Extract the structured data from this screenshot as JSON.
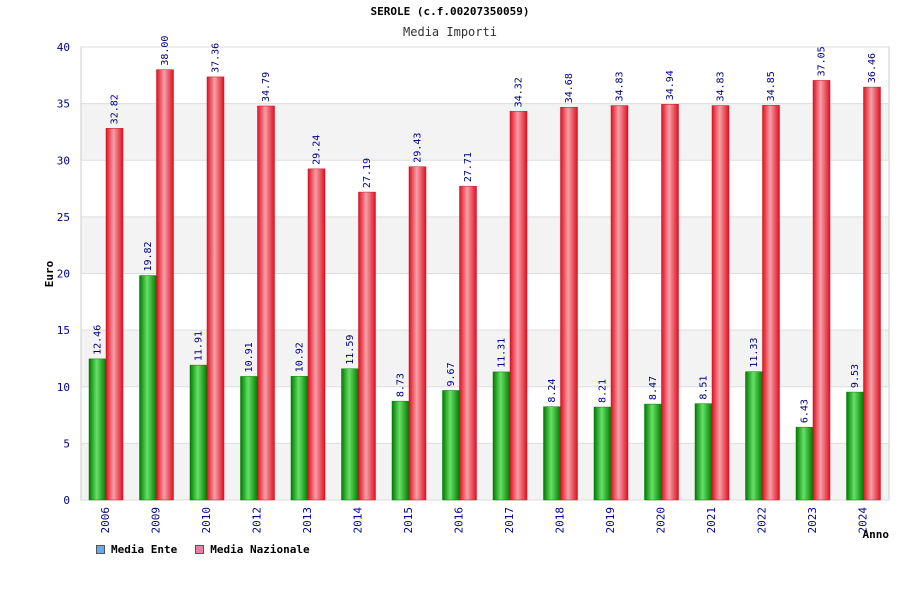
{
  "header": {
    "title": "SEROLE (c.f.00207350059)",
    "subtitle": "Media Importi"
  },
  "legend": [
    {
      "label": "Media Ente",
      "color": "#6aa8e8"
    },
    {
      "label": "Media Nazionale",
      "color": "#e87fa8"
    }
  ],
  "colors": {
    "ente": "#00b000",
    "nazionale": "#e8202c",
    "axis_text": "#00008b",
    "band": "#f3f3f3"
  },
  "chart_data": {
    "type": "bar",
    "title": "SEROLE (c.f.00207350059)",
    "subtitle": "Media Importi",
    "xlabel": "Anno",
    "ylabel": "Euro",
    "ylim": [
      0,
      40
    ],
    "yticks": [
      0,
      5,
      10,
      15,
      20,
      25,
      30,
      35,
      40
    ],
    "categories": [
      "2006",
      "2009",
      "2010",
      "2012",
      "2013",
      "2014",
      "2015",
      "2016",
      "2017",
      "2018",
      "2019",
      "2020",
      "2021",
      "2022",
      "2023",
      "2024"
    ],
    "series": [
      {
        "name": "Media Ente",
        "values": [
          12.46,
          19.82,
          11.91,
          10.91,
          10.92,
          11.59,
          8.73,
          9.67,
          11.31,
          8.24,
          8.21,
          8.47,
          8.51,
          11.33,
          6.43,
          9.53
        ]
      },
      {
        "name": "Media Nazionale",
        "values": [
          32.82,
          38.0,
          37.36,
          34.79,
          29.24,
          27.19,
          29.43,
          27.71,
          34.32,
          34.68,
          34.83,
          34.94,
          34.83,
          34.85,
          37.05,
          36.46
        ]
      }
    ],
    "grid": true,
    "legend_position": "bottom-left"
  }
}
